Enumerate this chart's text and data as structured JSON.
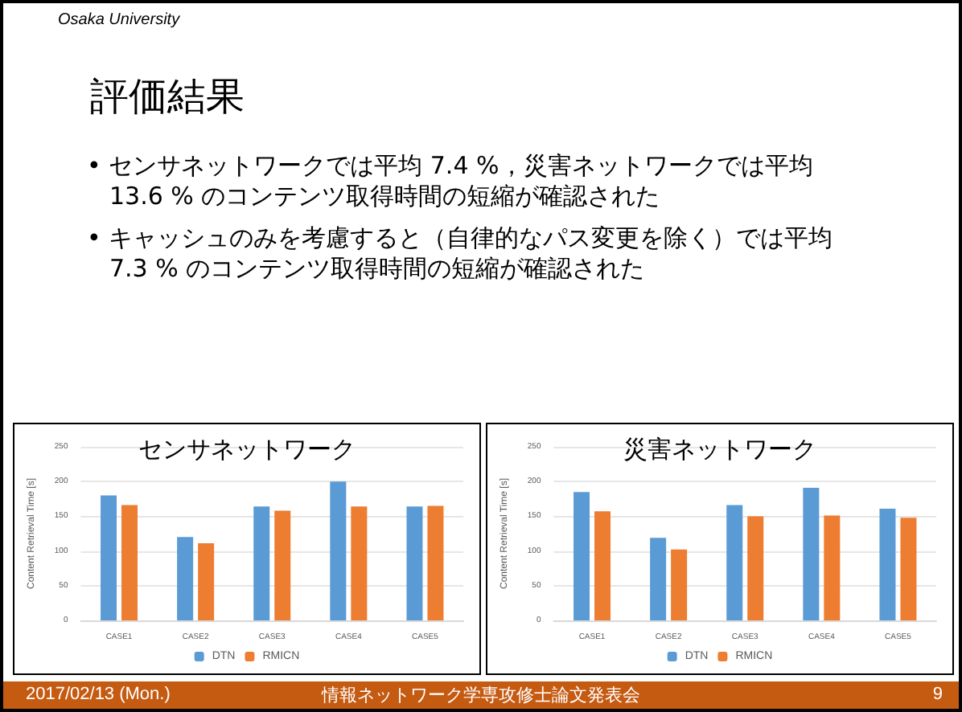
{
  "chart_data": [
    {
      "type": "other",
      "title": "評価結果",
      "annotations": [
        "Osaka University",
        "• センサネットワークでは平均 7.4 %，災害ネットワークでは平均 13.6 % のコンテンツ取得時間の短縮が確認された",
        "• キャッシュのみを考慮すると（自律的なパス変更を除く）では平均 7.3 % のコンテンツ取得時間の短縮が確認された",
        "2017/02/13 (Mon.)",
        "情報ネットワーク学専攻修士論文発表会",
        "9"
      ]
    },
    {
      "type": "bar",
      "title": "センサネットワーク",
      "ylabel": "Content Retrieval Time [s]",
      "categories": [
        "CASE1",
        "CASE2",
        "CASE3",
        "CASE4",
        "CASE5"
      ],
      "series": [
        {
          "name": "DTN",
          "color": "#5b9bd5",
          "values": [
            180,
            120,
            164,
            200,
            164
          ]
        },
        {
          "name": "RMICN",
          "color": "#ed7d31",
          "values": [
            166,
            111,
            158,
            164,
            165
          ]
        }
      ],
      "ylim": [
        0,
        250
      ],
      "yticks": [
        0,
        50,
        100,
        150,
        200,
        250
      ],
      "grid": "y",
      "legend": "bottom"
    },
    {
      "type": "bar",
      "title": "災害ネットワーク",
      "ylabel": "Content Retrieval Time [s]",
      "categories": [
        "CASE1",
        "CASE2",
        "CASE3",
        "CASE4",
        "CASE5"
      ],
      "series": [
        {
          "name": "DTN",
          "color": "#5b9bd5",
          "values": [
            185,
            119,
            166,
            191,
            161
          ]
        },
        {
          "name": "RMICN",
          "color": "#ed7d31",
          "values": [
            157,
            102,
            150,
            151,
            148
          ]
        }
      ],
      "ylim": [
        0,
        250
      ],
      "yticks": [
        0,
        50,
        100,
        150,
        200,
        250
      ],
      "grid": "y",
      "legend": "bottom"
    }
  ]
}
